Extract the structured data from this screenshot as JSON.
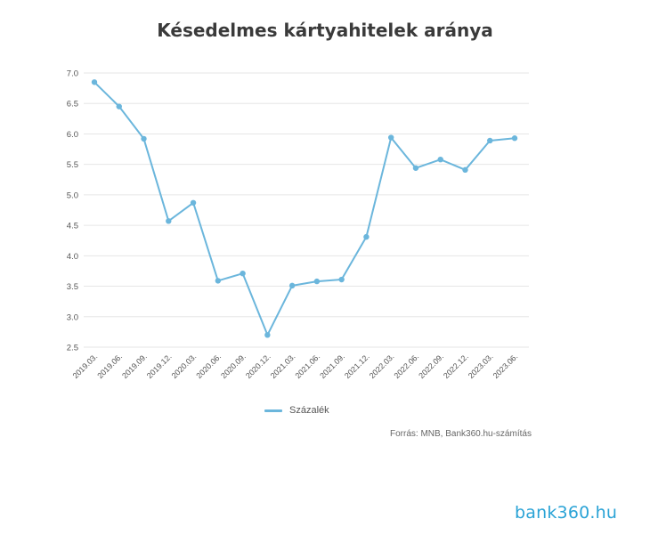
{
  "chart_data": {
    "type": "line",
    "title": "Késedelmes kártyahitelek aránya",
    "categories": [
      "2019.03.",
      "2019.06.",
      "2019.09.",
      "2019.12.",
      "2020.03.",
      "2020.06.",
      "2020.09.",
      "2020.12.",
      "2021.03.",
      "2021.06.",
      "2021.09.",
      "2021.12.",
      "2022.03.",
      "2022.06.",
      "2022.09.",
      "2022.12.",
      "2023.03.",
      "2023.06."
    ],
    "series": [
      {
        "name": "Százalék",
        "values": [
          6.85,
          6.45,
          5.92,
          4.57,
          4.87,
          3.59,
          3.71,
          2.7,
          3.51,
          3.58,
          3.61,
          4.31,
          5.94,
          5.44,
          5.58,
          5.41,
          5.89,
          5.93
        ]
      }
    ],
    "ylim": [
      2.5,
      7.0
    ],
    "yticks": [
      "7.0",
      "6.5",
      "6.0",
      "5.5",
      "5.0",
      "4.5",
      "4.0",
      "3.5",
      "3.0",
      "2.5"
    ],
    "grid": true,
    "legend": "bottom",
    "color": "#6bb6dc"
  },
  "source": "Forrás: MNB, Bank360.hu-számítás",
  "logo_text": "bank360.hu"
}
